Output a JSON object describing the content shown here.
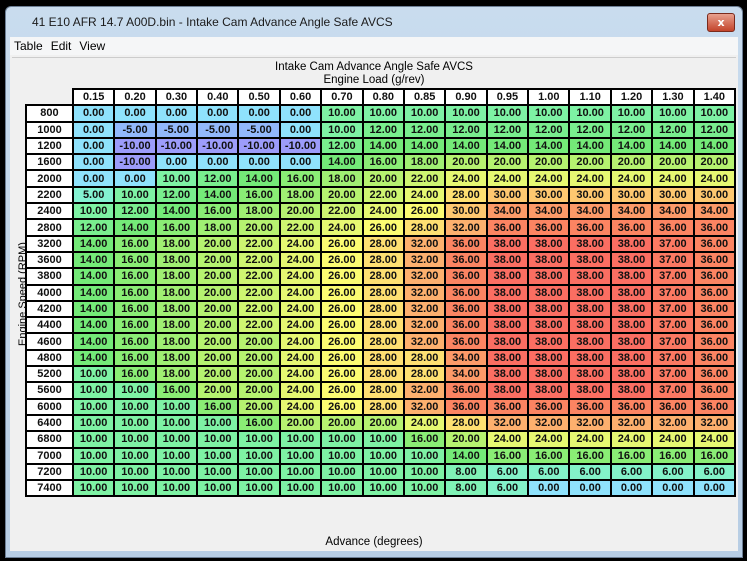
{
  "window": {
    "title": "41 E10 AFR 14.7 A00D.bin - Intake Cam Advance Angle Safe AVCS",
    "close_label": "x"
  },
  "menu": [
    "Table",
    "Edit",
    "View"
  ],
  "table": {
    "title": "Intake Cam Advance Angle Safe AVCS",
    "x_axis_label": "Engine Load (g/rev)",
    "y_axis_label": "Engine Speed (RPM)",
    "value_label": "Advance (degrees)",
    "columns": [
      "0.15",
      "0.20",
      "0.30",
      "0.40",
      "0.50",
      "0.60",
      "0.70",
      "0.80",
      "0.85",
      "0.90",
      "0.95",
      "1.00",
      "1.10",
      "1.20",
      "1.30",
      "1.40"
    ],
    "rows": [
      {
        "rpm": "800",
        "values": [
          0,
          0,
          0,
          0,
          0,
          0,
          10,
          10,
          10,
          10,
          10,
          10,
          10,
          10,
          10,
          10
        ]
      },
      {
        "rpm": "1000",
        "values": [
          0,
          -5,
          -5,
          -5,
          -5,
          0,
          10,
          12,
          12,
          12,
          12,
          12,
          12,
          12,
          12,
          12
        ]
      },
      {
        "rpm": "1200",
        "values": [
          0,
          -10,
          -10,
          -10,
          -10,
          -10,
          12,
          14,
          14,
          14,
          14,
          14,
          14,
          14,
          14,
          14
        ]
      },
      {
        "rpm": "1600",
        "values": [
          0,
          -10,
          0,
          0,
          0,
          0,
          14,
          16,
          18,
          20,
          20,
          20,
          20,
          20,
          20,
          20
        ]
      },
      {
        "rpm": "2000",
        "values": [
          0,
          0,
          10,
          12,
          14,
          16,
          18,
          20,
          22,
          24,
          24,
          24,
          24,
          24,
          24,
          24
        ]
      },
      {
        "rpm": "2200",
        "values": [
          5,
          10,
          12,
          14,
          16,
          18,
          20,
          22,
          24,
          28,
          30,
          30,
          30,
          30,
          30,
          30
        ]
      },
      {
        "rpm": "2400",
        "values": [
          10,
          12,
          14,
          16,
          18,
          20,
          22,
          24,
          26,
          30,
          34,
          34,
          34,
          34,
          34,
          34
        ]
      },
      {
        "rpm": "2800",
        "values": [
          12,
          14,
          16,
          18,
          20,
          22,
          24,
          26,
          28,
          32,
          36,
          36,
          36,
          36,
          36,
          36
        ]
      },
      {
        "rpm": "3200",
        "values": [
          14,
          16,
          18,
          20,
          22,
          24,
          26,
          28,
          32,
          36,
          38,
          38,
          38,
          38,
          37,
          36
        ]
      },
      {
        "rpm": "3600",
        "values": [
          14,
          16,
          18,
          20,
          22,
          24,
          26,
          28,
          32,
          36,
          38,
          38,
          38,
          38,
          37,
          36
        ]
      },
      {
        "rpm": "3800",
        "values": [
          14,
          16,
          18,
          20,
          22,
          24,
          26,
          28,
          32,
          36,
          38,
          38,
          38,
          38,
          37,
          36
        ]
      },
      {
        "rpm": "4000",
        "values": [
          14,
          16,
          18,
          20,
          22,
          24,
          26,
          28,
          32,
          36,
          38,
          38,
          38,
          38,
          37,
          36
        ]
      },
      {
        "rpm": "4200",
        "values": [
          14,
          16,
          18,
          20,
          22,
          24,
          26,
          28,
          32,
          36,
          38,
          38,
          38,
          38,
          37,
          36
        ]
      },
      {
        "rpm": "4400",
        "values": [
          14,
          16,
          18,
          20,
          22,
          24,
          26,
          28,
          32,
          36,
          38,
          38,
          38,
          38,
          37,
          36
        ]
      },
      {
        "rpm": "4600",
        "values": [
          14,
          16,
          18,
          20,
          20,
          24,
          26,
          28,
          32,
          36,
          38,
          38,
          38,
          38,
          37,
          36
        ]
      },
      {
        "rpm": "4800",
        "values": [
          14,
          16,
          18,
          20,
          20,
          24,
          26,
          28,
          28,
          34,
          38,
          38,
          38,
          38,
          37,
          36
        ]
      },
      {
        "rpm": "5200",
        "values": [
          10,
          16,
          18,
          20,
          20,
          24,
          26,
          28,
          28,
          34,
          38,
          38,
          38,
          38,
          37,
          36
        ]
      },
      {
        "rpm": "5600",
        "values": [
          10,
          10,
          16,
          20,
          20,
          24,
          26,
          28,
          32,
          36,
          38,
          38,
          38,
          38,
          37,
          36
        ]
      },
      {
        "rpm": "6000",
        "values": [
          10,
          10,
          10,
          16,
          20,
          24,
          26,
          28,
          32,
          36,
          36,
          36,
          36,
          36,
          36,
          36
        ]
      },
      {
        "rpm": "6400",
        "values": [
          10,
          10,
          10,
          10,
          16,
          20,
          20,
          20,
          24,
          28,
          32,
          32,
          32,
          32,
          32,
          32
        ]
      },
      {
        "rpm": "6800",
        "values": [
          10,
          10,
          10,
          10,
          10,
          10,
          10,
          10,
          16,
          20,
          24,
          24,
          24,
          24,
          24,
          24
        ]
      },
      {
        "rpm": "7000",
        "values": [
          10,
          10,
          10,
          10,
          10,
          10,
          10,
          10,
          10,
          14,
          16,
          16,
          16,
          16,
          16,
          16
        ]
      },
      {
        "rpm": "7200",
        "values": [
          10,
          10,
          10,
          10,
          10,
          10,
          10,
          10,
          10,
          8,
          6,
          6,
          6,
          6,
          6,
          6
        ]
      },
      {
        "rpm": "7400",
        "values": [
          10,
          10,
          10,
          10,
          10,
          10,
          10,
          10,
          10,
          8,
          6,
          0,
          0,
          0,
          0,
          0
        ]
      }
    ],
    "color_scale": [
      {
        "value": -10,
        "color": "#9c9cfa"
      },
      {
        "value": -5,
        "color": "#92b8fb"
      },
      {
        "value": 0,
        "color": "#8fe2fc"
      },
      {
        "value": 5,
        "color": "#84f2d2"
      },
      {
        "value": 10,
        "color": "#7ef2a4"
      },
      {
        "value": 14,
        "color": "#74ea78"
      },
      {
        "value": 20,
        "color": "#b6f270"
      },
      {
        "value": 24,
        "color": "#e6f872"
      },
      {
        "value": 26,
        "color": "#fcfc72"
      },
      {
        "value": 28,
        "color": "#fee072"
      },
      {
        "value": 32,
        "color": "#fdb06e"
      },
      {
        "value": 36,
        "color": "#fc8462"
      },
      {
        "value": 38,
        "color": "#fb6e62"
      }
    ]
  }
}
